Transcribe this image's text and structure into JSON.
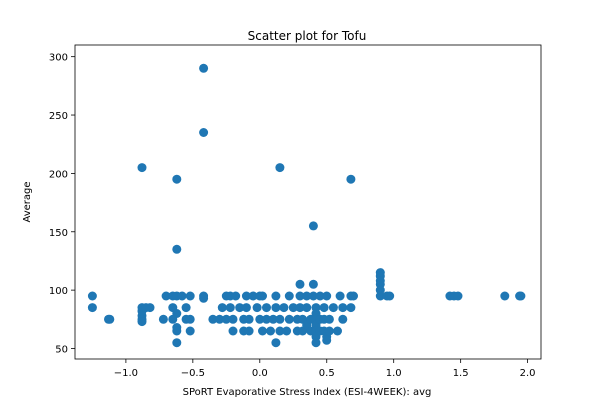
{
  "chart_data": {
    "type": "scatter",
    "title": "Scatter plot for Tofu",
    "xlabel": "SPoRT Evaporative Stress Index (ESI-4WEEK): avg",
    "ylabel": "Average",
    "xlim": [
      -1.38,
      2.1
    ],
    "ylim": [
      41,
      310
    ],
    "xticks": [
      -1.0,
      -0.5,
      0.0,
      0.5,
      1.0,
      1.5,
      2.0
    ],
    "xtick_labels": [
      "−1.0",
      "−0.5",
      "0.0",
      "0.5",
      "1.0",
      "1.5",
      "2.0"
    ],
    "yticks": [
      50,
      100,
      150,
      200,
      250,
      300
    ],
    "ytick_labels": [
      "50",
      "100",
      "150",
      "200",
      "250",
      "300"
    ],
    "grid": false,
    "legend": "none",
    "marker_color": "#1f77b4",
    "points": [
      [
        -1.25,
        95
      ],
      [
        -1.25,
        85
      ],
      [
        -1.12,
        75
      ],
      [
        -1.13,
        75
      ],
      [
        -0.88,
        205
      ],
      [
        -0.88,
        85
      ],
      [
        -0.88,
        82
      ],
      [
        -0.88,
        78
      ],
      [
        -0.88,
        75
      ],
      [
        -0.88,
        73
      ],
      [
        -0.85,
        85
      ],
      [
        -0.82,
        85
      ],
      [
        -0.72,
        75
      ],
      [
        -0.7,
        95
      ],
      [
        -0.65,
        95
      ],
      [
        -0.65,
        85
      ],
      [
        -0.65,
        75
      ],
      [
        -0.62,
        195
      ],
      [
        -0.62,
        135
      ],
      [
        -0.62,
        95
      ],
      [
        -0.62,
        80
      ],
      [
        -0.62,
        68
      ],
      [
        -0.62,
        65
      ],
      [
        -0.62,
        55
      ],
      [
        -0.58,
        95
      ],
      [
        -0.55,
        85
      ],
      [
        -0.55,
        75
      ],
      [
        -0.52,
        95
      ],
      [
        -0.52,
        75
      ],
      [
        -0.52,
        65
      ],
      [
        -0.42,
        290
      ],
      [
        -0.42,
        235
      ],
      [
        -0.42,
        95
      ],
      [
        -0.42,
        93
      ],
      [
        -0.35,
        75
      ],
      [
        -0.3,
        75
      ],
      [
        -0.28,
        85
      ],
      [
        -0.25,
        95
      ],
      [
        -0.25,
        75
      ],
      [
        -0.22,
        95
      ],
      [
        -0.22,
        85
      ],
      [
        -0.2,
        75
      ],
      [
        -0.2,
        65
      ],
      [
        -0.18,
        95
      ],
      [
        -0.15,
        85
      ],
      [
        -0.12,
        75
      ],
      [
        -0.12,
        65
      ],
      [
        -0.1,
        95
      ],
      [
        -0.1,
        85
      ],
      [
        -0.08,
        75
      ],
      [
        -0.08,
        65
      ],
      [
        -0.05,
        95
      ],
      [
        -0.02,
        85
      ],
      [
        0.0,
        95
      ],
      [
        0.0,
        75
      ],
      [
        0.02,
        95
      ],
      [
        0.02,
        65
      ],
      [
        0.05,
        85
      ],
      [
        0.05,
        75
      ],
      [
        0.08,
        65
      ],
      [
        0.1,
        75
      ],
      [
        0.12,
        95
      ],
      [
        0.12,
        85
      ],
      [
        0.12,
        55
      ],
      [
        0.15,
        205
      ],
      [
        0.15,
        75
      ],
      [
        0.15,
        65
      ],
      [
        0.18,
        85
      ],
      [
        0.2,
        65
      ],
      [
        0.22,
        95
      ],
      [
        0.22,
        75
      ],
      [
        0.25,
        85
      ],
      [
        0.28,
        75
      ],
      [
        0.28,
        65
      ],
      [
        0.3,
        95
      ],
      [
        0.3,
        85
      ],
      [
        0.3,
        105
      ],
      [
        0.32,
        75
      ],
      [
        0.32,
        65
      ],
      [
        0.35,
        95
      ],
      [
        0.35,
        85
      ],
      [
        0.35,
        70
      ],
      [
        0.38,
        75
      ],
      [
        0.38,
        65
      ],
      [
        0.4,
        155
      ],
      [
        0.4,
        105
      ],
      [
        0.4,
        95
      ],
      [
        0.42,
        85
      ],
      [
        0.42,
        80
      ],
      [
        0.42,
        75
      ],
      [
        0.42,
        70
      ],
      [
        0.42,
        65
      ],
      [
        0.42,
        60
      ],
      [
        0.42,
        55
      ],
      [
        0.45,
        95
      ],
      [
        0.45,
        75
      ],
      [
        0.45,
        65
      ],
      [
        0.48,
        85
      ],
      [
        0.48,
        75
      ],
      [
        0.48,
        65
      ],
      [
        0.5,
        95
      ],
      [
        0.5,
        60
      ],
      [
        0.5,
        57
      ],
      [
        0.52,
        75
      ],
      [
        0.52,
        65
      ],
      [
        0.55,
        85
      ],
      [
        0.58,
        65
      ],
      [
        0.6,
        95
      ],
      [
        0.62,
        85
      ],
      [
        0.62,
        75
      ],
      [
        0.68,
        195
      ],
      [
        0.68,
        95
      ],
      [
        0.68,
        85
      ],
      [
        0.7,
        95
      ],
      [
        0.9,
        115
      ],
      [
        0.9,
        112
      ],
      [
        0.9,
        108
      ],
      [
        0.9,
        105
      ],
      [
        0.9,
        100
      ],
      [
        0.9,
        95
      ],
      [
        0.95,
        95
      ],
      [
        0.97,
        95
      ],
      [
        1.42,
        95
      ],
      [
        1.45,
        95
      ],
      [
        1.48,
        95
      ],
      [
        1.83,
        95
      ],
      [
        1.94,
        95
      ],
      [
        1.95,
        95
      ]
    ]
  }
}
